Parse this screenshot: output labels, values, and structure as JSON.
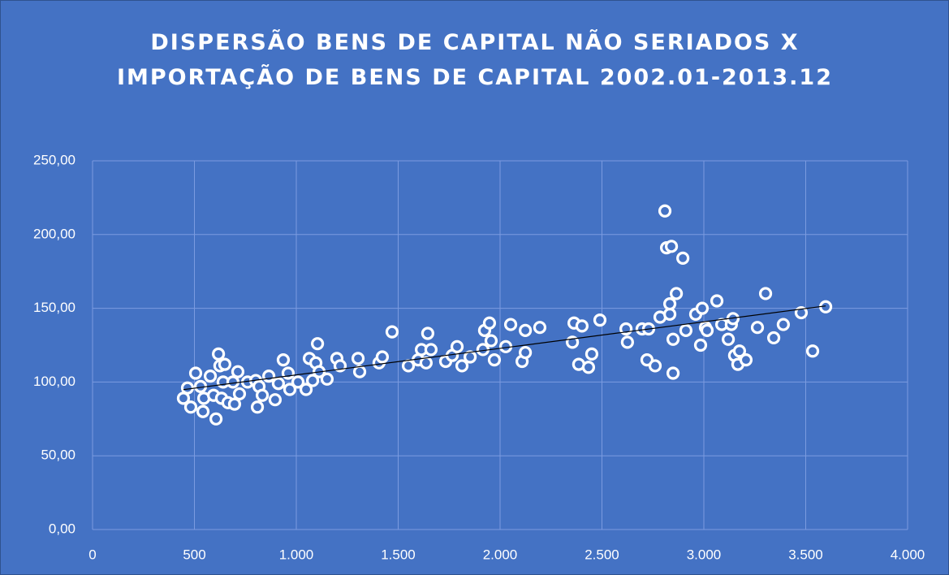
{
  "chart_data": {
    "type": "scatter",
    "title": "DISPERSÃO BENS DE CAPITAL NÃO SERIADOS X IMPORTAÇÃO DE BENS DE CAPITAL 2002.01-2013.12",
    "background": "#4472c4",
    "color": "#ffffff",
    "grid": true,
    "trendline": "linear",
    "trendline_color": "#000000",
    "xlim": [
      0,
      4000
    ],
    "xticks": [
      0,
      500,
      {
        "value": 1000,
        "label": "1.000"
      },
      {
        "value": 1500,
        "label": "1.500"
      },
      {
        "value": 2000,
        "label": "2.000"
      },
      {
        "value": 2500,
        "label": "2.500"
      },
      {
        "value": 3000,
        "label": "3.000"
      },
      {
        "value": 3500,
        "label": "3.500"
      },
      {
        "value": 4000,
        "label": "4.000"
      }
    ],
    "ylim": [
      0,
      250
    ],
    "yticks": [
      {
        "value": 0,
        "label": "0,00"
      },
      {
        "value": 50,
        "label": "50,00"
      },
      {
        "value": 100,
        "label": "100,00"
      },
      {
        "value": 150,
        "label": "150,00"
      },
      {
        "value": 200,
        "label": "200,00"
      },
      {
        "value": 250,
        "label": "250,00"
      }
    ],
    "x": [
      446,
      466,
      482,
      506,
      530,
      546,
      542,
      578,
      594,
      606,
      618,
      625,
      633,
      641,
      649,
      665,
      689,
      697,
      713,
      721,
      761,
      801,
      809,
      817,
      833,
      865,
      896,
      912,
      936,
      960,
      968,
      1008,
      1048,
      1064,
      1080,
      1096,
      1104,
      1112,
      1151,
      1199,
      1215,
      1303,
      1311,
      1406,
      1422,
      1470,
      1550,
      1598,
      1614,
      1637,
      1645,
      1661,
      1733,
      1765,
      1789,
      1813,
      1853,
      1916,
      1924,
      1948,
      1956,
      1972,
      2028,
      2052,
      2108,
      2124,
      2124,
      2195,
      2355,
      2363,
      2386,
      2402,
      2434,
      2450,
      2490,
      2618,
      2625,
      2697,
      2729,
      2721,
      2761,
      2785,
      2809,
      2817,
      2833,
      2833,
      2841,
      2849,
      2849,
      2865,
      2897,
      2912,
      2960,
      2984,
      2992,
      3008,
      3016,
      3064,
      3088,
      3120,
      3135,
      3143,
      3151,
      3167,
      3175,
      3207,
      3263,
      3303,
      3343,
      3390,
      3478,
      3534,
      3598
    ],
    "values": [
      89,
      96,
      83,
      106,
      97,
      89,
      80,
      104,
      91,
      75,
      119,
      111,
      89,
      100,
      112,
      86,
      100,
      85,
      107,
      92,
      100,
      101,
      83,
      97,
      91,
      104,
      88,
      99,
      115,
      106,
      95,
      100,
      95,
      116,
      101,
      113,
      126,
      107,
      102,
      116,
      111,
      116,
      107,
      113,
      117,
      134,
      111,
      115,
      122,
      113,
      133,
      122,
      114,
      118,
      124,
      111,
      117,
      122,
      135,
      140,
      128,
      115,
      124,
      139,
      114,
      120,
      135,
      137,
      127,
      140,
      112,
      138,
      110,
      119,
      142,
      136,
      127,
      136,
      136,
      115,
      111,
      144,
      216,
      191,
      146,
      153,
      192,
      129,
      106,
      160,
      184,
      135,
      146,
      125,
      150,
      137,
      135,
      155,
      139,
      129,
      139,
      143,
      118,
      112,
      121,
      115,
      137,
      160,
      130,
      139,
      147,
      121,
      151
    ]
  }
}
